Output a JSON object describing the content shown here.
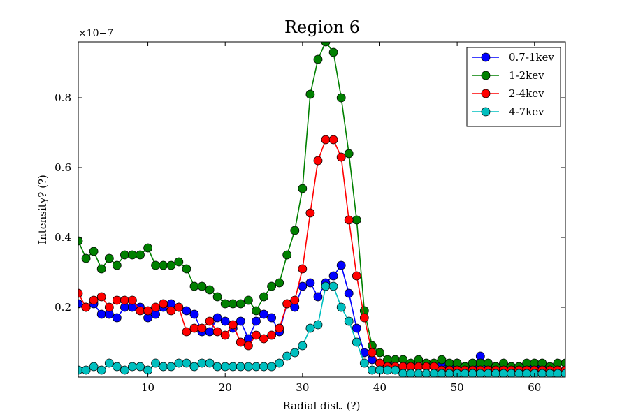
{
  "chart_data": {
    "type": "line",
    "title": "Region 6",
    "xlabel": "Radial dist. (?)",
    "ylabel": "Intensity? (?)",
    "y_scale_label": "×10−7",
    "xlim": [
      1,
      64
    ],
    "ylim": [
      0,
      0.96
    ],
    "x_ticks": [
      10,
      20,
      30,
      40,
      50,
      60
    ],
    "x_tick_labels": [
      "10",
      "20",
      "30",
      "40",
      "50",
      "60"
    ],
    "y_ticks": [
      0.2,
      0.4,
      0.6,
      0.8
    ],
    "y_tick_labels": [
      "0.2",
      "0.4",
      "0.6",
      "0.8"
    ],
    "grid": false,
    "legend_position": "top-right",
    "x": [
      1,
      2,
      3,
      4,
      5,
      6,
      7,
      8,
      9,
      10,
      11,
      12,
      13,
      14,
      15,
      16,
      17,
      18,
      19,
      20,
      21,
      22,
      23,
      24,
      25,
      26,
      27,
      28,
      29,
      30,
      31,
      32,
      33,
      34,
      35,
      36,
      37,
      38,
      39,
      40,
      41,
      42,
      43,
      44,
      45,
      46,
      47,
      48,
      49,
      50,
      51,
      52,
      53,
      54,
      55,
      56,
      57,
      58,
      59,
      60,
      61,
      62,
      63,
      64
    ],
    "series": [
      {
        "name": "0.7-1kev",
        "color": "#0000ff",
        "values": [
          0.21,
          0.2,
          0.21,
          0.18,
          0.18,
          0.17,
          0.2,
          0.2,
          0.2,
          0.17,
          0.18,
          0.2,
          0.21,
          0.2,
          0.19,
          0.18,
          0.13,
          0.13,
          0.17,
          0.16,
          0.14,
          0.16,
          0.11,
          0.16,
          0.18,
          0.17,
          0.13,
          0.21,
          0.2,
          0.26,
          0.27,
          0.23,
          0.27,
          0.29,
          0.32,
          0.24,
          0.14,
          0.07,
          0.05,
          0.04,
          0.04,
          0.03,
          0.03,
          0.03,
          0.03,
          0.03,
          0.03,
          0.04,
          0.03,
          0.04,
          0.03,
          0.03,
          0.06,
          0.03,
          0.03,
          0.03,
          0.03,
          0.03,
          0.03,
          0.03,
          0.03,
          0.02,
          0.02,
          0.02
        ]
      },
      {
        "name": "1-2kev",
        "color": "#008000",
        "values": [
          0.39,
          0.34,
          0.36,
          0.31,
          0.34,
          0.32,
          0.35,
          0.35,
          0.35,
          0.37,
          0.32,
          0.32,
          0.32,
          0.33,
          0.31,
          0.26,
          0.26,
          0.25,
          0.23,
          0.21,
          0.21,
          0.21,
          0.22,
          0.19,
          0.23,
          0.26,
          0.27,
          0.35,
          0.42,
          0.54,
          0.81,
          0.91,
          0.96,
          0.93,
          0.8,
          0.64,
          0.45,
          0.19,
          0.09,
          0.07,
          0.05,
          0.05,
          0.05,
          0.04,
          0.05,
          0.04,
          0.04,
          0.05,
          0.04,
          0.04,
          0.03,
          0.04,
          0.04,
          0.04,
          0.03,
          0.04,
          0.03,
          0.03,
          0.04,
          0.04,
          0.04,
          0.03,
          0.04,
          0.04
        ]
      },
      {
        "name": "2-4kev",
        "color": "#ff0000",
        "values": [
          0.24,
          0.2,
          0.22,
          0.23,
          0.2,
          0.22,
          0.22,
          0.22,
          0.19,
          0.19,
          0.2,
          0.21,
          0.19,
          0.2,
          0.13,
          0.14,
          0.14,
          0.16,
          0.13,
          0.12,
          0.15,
          0.1,
          0.09,
          0.12,
          0.11,
          0.12,
          0.14,
          0.21,
          0.22,
          0.31,
          0.47,
          0.62,
          0.68,
          0.68,
          0.63,
          0.45,
          0.29,
          0.17,
          0.07,
          0.04,
          0.03,
          0.03,
          0.03,
          0.03,
          0.03,
          0.03,
          0.03,
          0.02,
          0.02,
          0.02,
          0.02,
          0.02,
          0.02,
          0.02,
          0.02,
          0.02,
          0.02,
          0.02,
          0.02,
          0.02,
          0.02,
          0.02,
          0.02,
          0.02
        ]
      },
      {
        "name": "4-7kev",
        "color": "#00bfbf",
        "values": [
          0.02,
          0.02,
          0.03,
          0.02,
          0.04,
          0.03,
          0.02,
          0.03,
          0.03,
          0.02,
          0.04,
          0.03,
          0.03,
          0.04,
          0.04,
          0.03,
          0.04,
          0.04,
          0.03,
          0.03,
          0.03,
          0.03,
          0.03,
          0.03,
          0.03,
          0.03,
          0.04,
          0.06,
          0.07,
          0.09,
          0.14,
          0.15,
          0.26,
          0.26,
          0.2,
          0.16,
          0.1,
          0.04,
          0.02,
          0.02,
          0.02,
          0.02,
          0.01,
          0.01,
          0.01,
          0.01,
          0.01,
          0.01,
          0.01,
          0.01,
          0.01,
          0.01,
          0.01,
          0.01,
          0.01,
          0.01,
          0.01,
          0.01,
          0.01,
          0.01,
          0.01,
          0.01,
          0.01,
          0.01
        ]
      }
    ]
  }
}
